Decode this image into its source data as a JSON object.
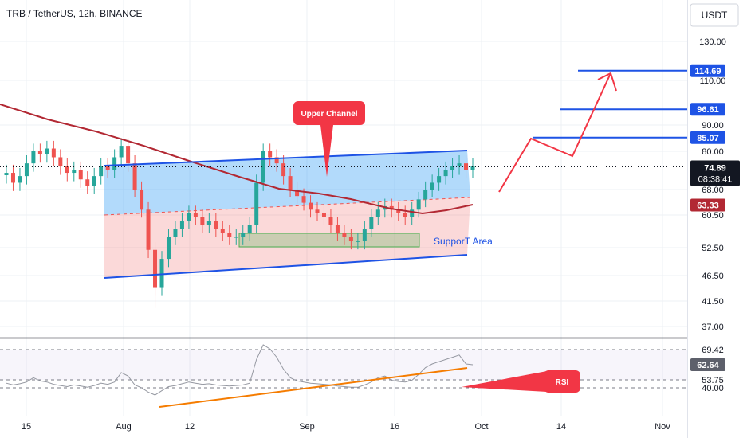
{
  "header": {
    "symbol_title": "TRB / TetherUS, 12h, BINANCE"
  },
  "currency_button": "USDT",
  "colors": {
    "candle_up": "#26a69a",
    "candle_down": "#ef5350",
    "channel_line": "#1e53e5",
    "ma_line": "#b22833",
    "target_line": "#1e53e5",
    "arrow": "#f23645",
    "rsi_line": "#7e57c2",
    "rsi_trend": "#f57c00",
    "support_box": "#4caf50"
  },
  "chart_data": [
    {
      "type": "candlestick",
      "title": "TRB / TetherUS, 12h, BINANCE",
      "x_tick_labels": [
        "15",
        "Aug",
        "12",
        "Sep",
        "16",
        "Oct",
        "14",
        "Nov"
      ],
      "y_tick_labels": [
        "130.00",
        "110.00",
        "90.00",
        "80.00",
        "68.00",
        "60.50",
        "52.50",
        "46.50",
        "41.50",
        "37.00"
      ],
      "y_scale": "log",
      "ylim": [
        35,
        150
      ],
      "grid": true,
      "price_tags": [
        {
          "label": "114.69",
          "value": 114.69,
          "kind": "target"
        },
        {
          "label": "96.61",
          "value": 96.61,
          "kind": "target"
        },
        {
          "label": "85.07",
          "value": 85.07,
          "kind": "target"
        },
        {
          "label": "74.89",
          "value": 74.89,
          "kind": "last",
          "countdown": "08:38:41"
        },
        {
          "label": "63.33",
          "value": 63.33,
          "kind": "moving_average"
        }
      ],
      "annotations": [
        {
          "text": "Upper Channel",
          "kind": "callout"
        },
        {
          "text": "SupporT Area",
          "kind": "label"
        }
      ],
      "close_series_approx": [
        73,
        70,
        72,
        76,
        80,
        79,
        81,
        78,
        75,
        73,
        74,
        71,
        69,
        72,
        75,
        74,
        78,
        82,
        76,
        68,
        62,
        52,
        44,
        50,
        55,
        57,
        59,
        61,
        60,
        58,
        59,
        57,
        56,
        55,
        55,
        56,
        58,
        70,
        80,
        78,
        76,
        72,
        68,
        66,
        64,
        62,
        61,
        60,
        58,
        56,
        55,
        54,
        54,
        57,
        60,
        62,
        63,
        62,
        61,
        60,
        62,
        65,
        68,
        70,
        72,
        74,
        75,
        76,
        74,
        75
      ]
    },
    {
      "type": "line",
      "title": "RSI",
      "y_tick_labels": [
        "69.42",
        "62.64",
        "53.75",
        "40.00"
      ],
      "ylim": [
        25,
        80
      ],
      "annotations": [
        {
          "text": "RSI",
          "kind": "callout"
        }
      ],
      "values_approx": [
        48,
        45,
        47,
        50,
        55,
        52,
        50,
        46,
        44,
        42,
        45,
        43,
        41,
        44,
        48,
        46,
        50,
        58,
        56,
        45,
        40,
        34,
        30,
        36,
        42,
        44,
        47,
        50,
        48,
        46,
        47,
        45,
        44,
        43,
        44,
        45,
        48,
        65,
        74,
        70,
        66,
        60,
        55,
        52,
        50,
        48,
        47,
        46,
        45,
        43,
        42,
        41,
        41,
        45,
        50,
        55,
        56,
        53,
        51,
        50,
        53,
        57,
        61,
        63,
        64,
        65,
        66,
        67,
        63,
        62.64
      ]
    }
  ]
}
